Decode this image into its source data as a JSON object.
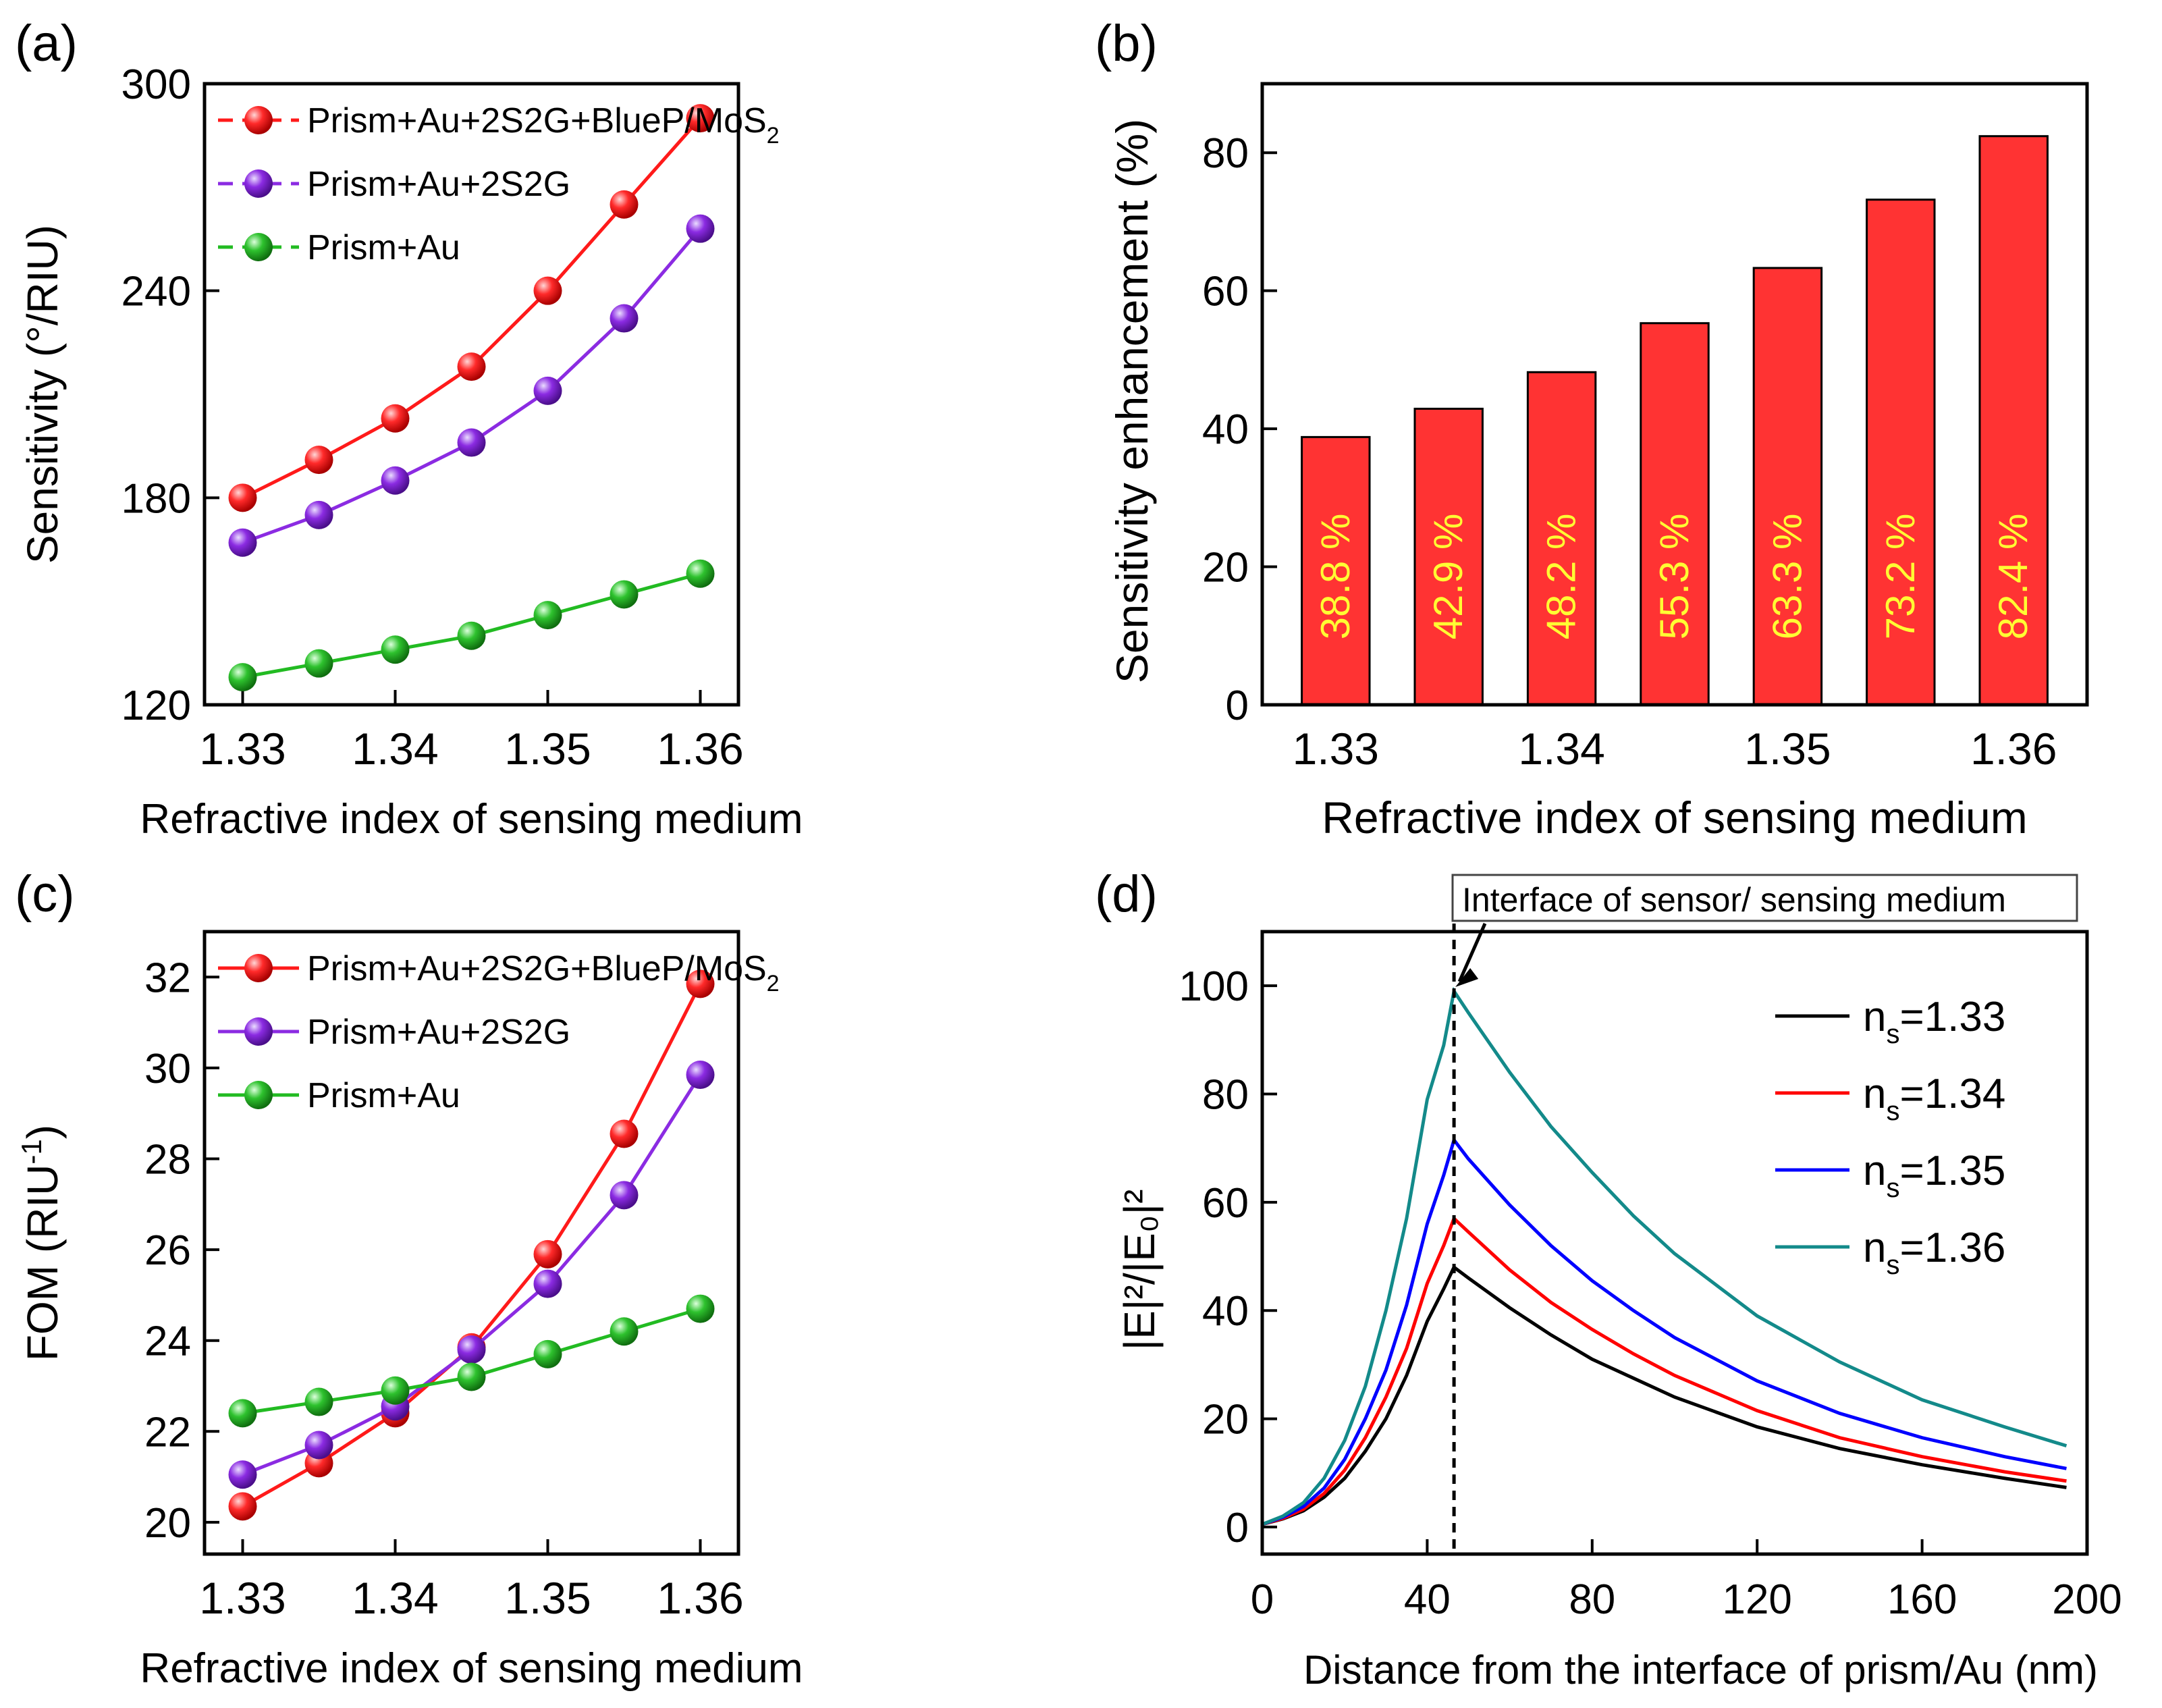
{
  "chart_data": [
    {
      "panel_label": "(a)",
      "type": "line",
      "title": "",
      "xlabel": "Refractive index of sensing medium",
      "ylabel": "Sensitivity (°/RIU)",
      "x": [
        1.33,
        1.335,
        1.34,
        1.345,
        1.35,
        1.355,
        1.36
      ],
      "xlim": [
        1.3275,
        1.3625
      ],
      "ylim": [
        120,
        300
      ],
      "xticks": [
        1.33,
        1.34,
        1.35,
        1.36
      ],
      "xtick_labels": [
        "1.33",
        "1.34",
        "1.35",
        "1.36"
      ],
      "yticks": [
        120,
        180,
        240,
        300
      ],
      "ytick_labels": [
        "120",
        "180",
        "240",
        "300"
      ],
      "legend_position": "top-left",
      "series": [
        {
          "name": "Prism+Au+2S2G+BlueP/MoS",
          "subscript": "2",
          "color": "#ff1a1a",
          "dash": true,
          "values": [
            180,
            191,
            203,
            218,
            240,
            265,
            290
          ]
        },
        {
          "name": "Prism+Au+2S2G",
          "subscript": "",
          "color": "#8b2be2",
          "dash": true,
          "values": [
            167,
            175,
            185,
            196,
            211,
            232,
            258
          ]
        },
        {
          "name": "Prism+Au",
          "subscript": "",
          "color": "#22bb22",
          "dash": true,
          "values": [
            128,
            132,
            136,
            140,
            146,
            152,
            158
          ]
        }
      ]
    },
    {
      "panel_label": "(b)",
      "type": "bar",
      "title": "",
      "xlabel": "Refractive index of sensing medium",
      "ylabel": "Sensitivity enhancement (%)",
      "categories": [
        "1.33",
        "1.335",
        "1.34",
        "1.345",
        "1.35",
        "1.355",
        "1.36"
      ],
      "values": [
        38.8,
        42.9,
        48.2,
        55.3,
        63.3,
        73.2,
        82.4
      ],
      "data_labels": [
        "38.8 %",
        "42.9 %",
        "48.2 %",
        "55.3 %",
        "63.3 %",
        "73.2 %",
        "82.4 %"
      ],
      "xtick_labels": [
        "1.33",
        "1.34",
        "1.35",
        "1.36"
      ],
      "xtick_categories": [
        0,
        2,
        4,
        6
      ],
      "ylim": [
        0,
        90
      ],
      "yticks": [
        0,
        20,
        40,
        60,
        80
      ],
      "ytick_labels": [
        "0",
        "20",
        "40",
        "60",
        "80"
      ],
      "bar_color": "#ff3333",
      "label_color": "#ffff33"
    },
    {
      "panel_label": "(c)",
      "type": "line",
      "title": "",
      "xlabel": "Refractive index of sensing medium",
      "ylabel": "FOM (RIU",
      "ylabel_superscript": "-1",
      "ylabel_suffix": ")",
      "x": [
        1.33,
        1.335,
        1.34,
        1.345,
        1.35,
        1.355,
        1.36
      ],
      "xlim": [
        1.3275,
        1.3625
      ],
      "ylim": [
        19.3,
        33
      ],
      "xticks": [
        1.33,
        1.34,
        1.35,
        1.36
      ],
      "xtick_labels": [
        "1.33",
        "1.34",
        "1.35",
        "1.36"
      ],
      "yticks": [
        20,
        22,
        24,
        26,
        28,
        30,
        32
      ],
      "ytick_labels": [
        "20",
        "22",
        "24",
        "26",
        "28",
        "30",
        "32"
      ],
      "legend_position": "top-left",
      "series": [
        {
          "name": "Prism+Au+2S2G+BlueP/MoS",
          "subscript": "2",
          "color": "#ff1a1a",
          "dash": false,
          "values": [
            20.35,
            21.3,
            22.4,
            23.85,
            25.9,
            28.55,
            31.85
          ]
        },
        {
          "name": "Prism+Au+2S2G",
          "subscript": "",
          "color": "#8b2be2",
          "dash": false,
          "values": [
            21.05,
            21.7,
            22.55,
            23.8,
            25.25,
            27.2,
            29.85
          ]
        },
        {
          "name": "Prism+Au",
          "subscript": "",
          "color": "#22bb22",
          "dash": false,
          "values": [
            22.4,
            22.65,
            22.9,
            23.2,
            23.7,
            24.2,
            24.7
          ]
        }
      ]
    },
    {
      "panel_label": "(d)",
      "type": "line",
      "title": "",
      "xlabel": "Distance from the interface of prism/Au (nm)",
      "ylabel": "|E|²/|E₀|²",
      "xlim": [
        0,
        200
      ],
      "ylim": [
        -5,
        110
      ],
      "xticks": [
        0,
        40,
        80,
        120,
        160,
        200
      ],
      "xtick_labels": [
        "0",
        "40",
        "80",
        "120",
        "160",
        "200"
      ],
      "yticks": [
        0,
        20,
        40,
        60,
        80,
        100
      ],
      "ytick_labels": [
        "0",
        "20",
        "40",
        "60",
        "80",
        "100"
      ],
      "annotation": "Interface of sensor/ sensing medium",
      "interface_x": 46.5,
      "legend_position": "right",
      "legend_prefix": "n",
      "legend_subscript": "s",
      "series": [
        {
          "name": "=1.33",
          "color": "#000000",
          "x": [
            0,
            5,
            10,
            15,
            20,
            25,
            30,
            35,
            40,
            44,
            46.5,
            50,
            60,
            70,
            80,
            90,
            100,
            120,
            140,
            160,
            180,
            195
          ],
          "values": [
            0.5,
            1.5,
            3,
            5.5,
            9,
            14,
            20,
            28,
            38,
            44,
            48,
            46,
            40.5,
            35.5,
            31,
            27.5,
            24,
            18.5,
            14.5,
            11.5,
            9,
            7.3
          ]
        },
        {
          "name": "=1.34",
          "color": "#ff0000",
          "x": [
            0,
            5,
            10,
            15,
            20,
            25,
            30,
            35,
            40,
            44,
            46.5,
            50,
            60,
            70,
            80,
            90,
            100,
            120,
            140,
            160,
            180,
            195
          ],
          "values": [
            0.5,
            1.6,
            3.3,
            6.2,
            10.5,
            16.5,
            24,
            33,
            45,
            52,
            57,
            54.5,
            47.5,
            41.5,
            36.5,
            32,
            28,
            21.5,
            16.5,
            13,
            10.2,
            8.5
          ]
        },
        {
          "name": "=1.35",
          "color": "#0000ff",
          "x": [
            0,
            5,
            10,
            15,
            20,
            25,
            30,
            35,
            40,
            44,
            46.5,
            50,
            60,
            70,
            80,
            90,
            100,
            120,
            140,
            160,
            180,
            195
          ],
          "values": [
            0.5,
            1.8,
            3.8,
            7.2,
            12.5,
            20,
            29,
            41,
            56,
            65,
            71.5,
            68,
            59.5,
            52,
            45.5,
            40,
            35,
            27,
            21,
            16.5,
            13,
            10.8
          ]
        },
        {
          "name": "=1.36",
          "color": "#138a8a",
          "x": [
            0,
            5,
            10,
            15,
            20,
            25,
            30,
            35,
            40,
            44,
            46.5,
            50,
            60,
            70,
            80,
            90,
            100,
            120,
            140,
            160,
            180,
            195
          ],
          "values": [
            0.5,
            2,
            4.5,
            9,
            16,
            26,
            40,
            57,
            79,
            89,
            99,
            95,
            84,
            74,
            65.5,
            57.5,
            50.5,
            39,
            30.5,
            23.5,
            18.5,
            15
          ]
        }
      ]
    }
  ]
}
